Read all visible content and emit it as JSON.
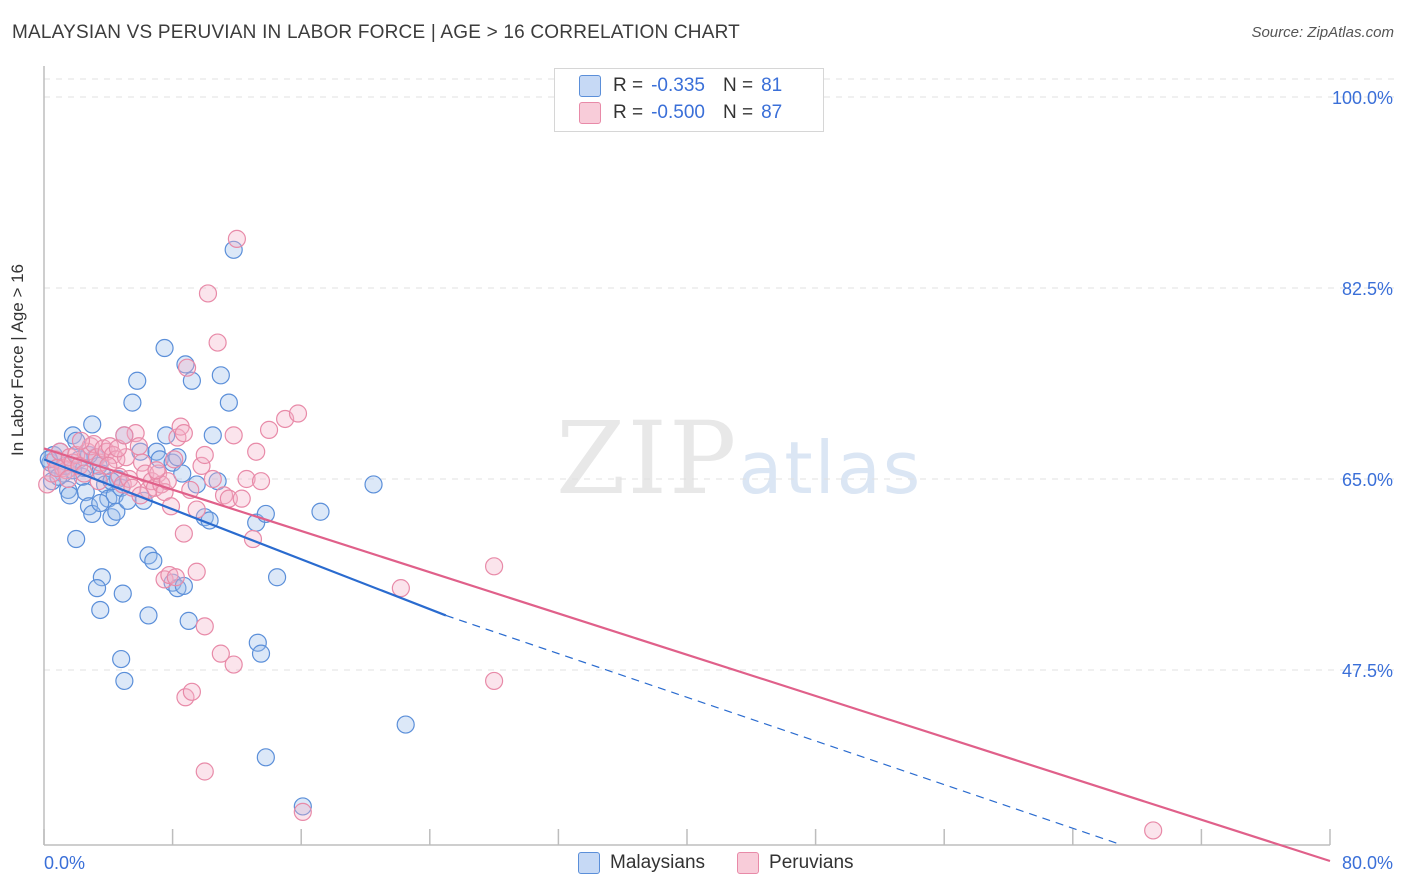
{
  "title": "MALAYSIAN VS PERUVIAN IN LABOR FORCE | AGE > 16 CORRELATION CHART",
  "source": "Source: ZipAtlas.com",
  "watermark": {
    "zip": "ZIP",
    "atlas": "atlas"
  },
  "legend": {
    "rows": [
      {
        "r_label": "R =",
        "r_value": "-0.335",
        "n_label": "N =",
        "n_value": "81"
      },
      {
        "r_label": "R =",
        "r_value": "-0.500",
        "n_label": "N =",
        "n_value": "87"
      }
    ]
  },
  "bottom_legend": {
    "malaysians": "Malaysians",
    "peruvians": "Peruvians"
  },
  "colors": {
    "blue": "#5b8fd9",
    "blue_line": "#2a6bcf",
    "pink": "#e88aa8",
    "pink_line": "#e0608a",
    "tick_text": "#3a6fd8"
  },
  "chart_data": {
    "type": "scatter",
    "title": "MALAYSIAN VS PERUVIAN IN LABOR FORCE | AGE > 16 CORRELATION CHART",
    "xlabel": "",
    "ylabel": "In Labor Force | Age > 16",
    "xlim": [
      0,
      80
    ],
    "ylim": [
      32.5,
      103
    ],
    "x_tick_labels": [
      "0.0%",
      "80.0%"
    ],
    "y_ticks": [
      47.5,
      65.0,
      82.5,
      100.0
    ],
    "y_tick_labels": [
      "47.5%",
      "65.0%",
      "82.5%",
      "100.0%"
    ],
    "series": [
      {
        "name": "Malaysians",
        "points": [
          [
            0.4,
            66.5
          ],
          [
            0.6,
            67.2
          ],
          [
            0.8,
            66.0
          ],
          [
            1.0,
            67.5
          ],
          [
            1.2,
            65.5
          ],
          [
            0.5,
            64.8
          ],
          [
            1.5,
            64.0
          ],
          [
            1.6,
            63.5
          ],
          [
            1.8,
            69.0
          ],
          [
            2.0,
            68.5
          ],
          [
            2.2,
            66.8
          ],
          [
            2.4,
            65.2
          ],
          [
            2.6,
            63.8
          ],
          [
            2.8,
            62.5
          ],
          [
            3.0,
            61.8
          ],
          [
            3.2,
            67.0
          ],
          [
            3.4,
            66.2
          ],
          [
            3.0,
            70.0
          ],
          [
            3.6,
            65.5
          ],
          [
            3.8,
            64.5
          ],
          [
            4.0,
            63.2
          ],
          [
            4.2,
            61.5
          ],
          [
            4.4,
            63.5
          ],
          [
            4.6,
            65.0
          ],
          [
            4.8,
            64.2
          ],
          [
            4.5,
            62.0
          ],
          [
            5.0,
            69.0
          ],
          [
            5.2,
            63.0
          ],
          [
            5.5,
            72.0
          ],
          [
            5.8,
            74.0
          ],
          [
            6.0,
            67.5
          ],
          [
            6.2,
            63.0
          ],
          [
            6.5,
            58.0
          ],
          [
            6.8,
            57.5
          ],
          [
            7.0,
            67.5
          ],
          [
            7.2,
            66.8
          ],
          [
            7.5,
            77.0
          ],
          [
            7.6,
            69.0
          ],
          [
            8.0,
            66.5
          ],
          [
            8.3,
            67.0
          ],
          [
            8.6,
            65.5
          ],
          [
            8.8,
            75.5
          ],
          [
            9.2,
            74.0
          ],
          [
            9.5,
            64.5
          ],
          [
            10.0,
            61.5
          ],
          [
            10.3,
            61.2
          ],
          [
            10.5,
            69.0
          ],
          [
            10.8,
            64.8
          ],
          [
            11.0,
            74.5
          ],
          [
            11.5,
            72.0
          ],
          [
            11.8,
            86.0
          ],
          [
            13.2,
            61.0
          ],
          [
            13.8,
            61.8
          ],
          [
            14.5,
            56.0
          ],
          [
            17.2,
            62.0
          ],
          [
            20.5,
            64.5
          ],
          [
            2.0,
            59.5
          ],
          [
            3.6,
            56.0
          ],
          [
            3.3,
            55.0
          ],
          [
            3.5,
            53.0
          ],
          [
            4.9,
            54.5
          ],
          [
            6.5,
            52.5
          ],
          [
            8.0,
            55.5
          ],
          [
            8.3,
            55.0
          ],
          [
            8.7,
            55.2
          ],
          [
            9.0,
            52.0
          ],
          [
            4.8,
            48.5
          ],
          [
            5.0,
            46.5
          ],
          [
            13.3,
            50.0
          ],
          [
            13.5,
            49.0
          ],
          [
            13.8,
            39.5
          ],
          [
            16.1,
            35.0
          ],
          [
            22.5,
            42.5
          ],
          [
            1.8,
            65.8
          ],
          [
            2.5,
            66.0
          ],
          [
            0.3,
            66.8
          ],
          [
            0.9,
            65.2
          ],
          [
            1.3,
            66.2
          ],
          [
            2.8,
            67.2
          ],
          [
            3.5,
            62.8
          ],
          [
            4.2,
            64.8
          ]
        ]
      },
      {
        "name": "Peruvians",
        "points": [
          [
            0.2,
            64.5
          ],
          [
            0.5,
            65.5
          ],
          [
            0.7,
            66.8
          ],
          [
            1.0,
            67.5
          ],
          [
            1.2,
            66.0
          ],
          [
            1.4,
            65.8
          ],
          [
            1.6,
            67.0
          ],
          [
            1.8,
            66.5
          ],
          [
            2.0,
            67.2
          ],
          [
            2.2,
            66.2
          ],
          [
            2.5,
            65.5
          ],
          [
            2.7,
            67.5
          ],
          [
            2.9,
            68.0
          ],
          [
            3.1,
            68.2
          ],
          [
            3.3,
            67.0
          ],
          [
            3.5,
            66.5
          ],
          [
            3.7,
            67.8
          ],
          [
            3.9,
            67.5
          ],
          [
            4.1,
            68.0
          ],
          [
            4.3,
            67.2
          ],
          [
            4.5,
            66.8
          ],
          [
            4.7,
            65.2
          ],
          [
            4.9,
            64.5
          ],
          [
            5.1,
            67.0
          ],
          [
            5.3,
            65.0
          ],
          [
            5.5,
            64.2
          ],
          [
            5.7,
            69.2
          ],
          [
            5.9,
            68.0
          ],
          [
            6.1,
            66.5
          ],
          [
            6.3,
            65.5
          ],
          [
            6.5,
            64.0
          ],
          [
            6.7,
            64.8
          ],
          [
            6.9,
            64.2
          ],
          [
            7.1,
            65.5
          ],
          [
            7.3,
            64.5
          ],
          [
            7.5,
            63.8
          ],
          [
            7.7,
            64.8
          ],
          [
            7.9,
            62.5
          ],
          [
            8.1,
            66.8
          ],
          [
            8.3,
            68.8
          ],
          [
            8.5,
            69.8
          ],
          [
            8.7,
            69.2
          ],
          [
            8.9,
            75.2
          ],
          [
            9.1,
            64.0
          ],
          [
            9.5,
            62.2
          ],
          [
            9.8,
            66.2
          ],
          [
            10.0,
            67.2
          ],
          [
            10.2,
            82.0
          ],
          [
            10.5,
            65.0
          ],
          [
            10.8,
            77.5
          ],
          [
            11.2,
            63.5
          ],
          [
            11.5,
            63.2
          ],
          [
            11.8,
            69.0
          ],
          [
            12.0,
            87.0
          ],
          [
            12.3,
            63.2
          ],
          [
            12.6,
            65.0
          ],
          [
            13.0,
            59.5
          ],
          [
            13.2,
            67.5
          ],
          [
            13.5,
            64.8
          ],
          [
            14.0,
            69.5
          ],
          [
            15.0,
            70.5
          ],
          [
            15.8,
            71.0
          ],
          [
            7.5,
            55.8
          ],
          [
            7.8,
            56.2
          ],
          [
            8.2,
            56.0
          ],
          [
            8.7,
            60.0
          ],
          [
            9.5,
            56.5
          ],
          [
            10.0,
            51.5
          ],
          [
            11.0,
            49.0
          ],
          [
            11.8,
            48.0
          ],
          [
            8.8,
            45.0
          ],
          [
            9.2,
            45.5
          ],
          [
            10.0,
            38.2
          ],
          [
            16.1,
            34.5
          ],
          [
            22.2,
            55.0
          ],
          [
            28.0,
            57.0
          ],
          [
            28.0,
            46.5
          ],
          [
            69.0,
            32.8
          ],
          [
            0.8,
            66.0
          ],
          [
            1.5,
            65.0
          ],
          [
            2.3,
            68.5
          ],
          [
            3.4,
            64.8
          ],
          [
            4.0,
            66.2
          ],
          [
            4.6,
            67.8
          ],
          [
            5.0,
            69.0
          ],
          [
            6.0,
            63.5
          ],
          [
            7.0,
            65.8
          ]
        ]
      }
    ],
    "trend_lines": [
      {
        "series": "Malaysians",
        "x0": 0,
        "y0": 66.8,
        "x1": 25,
        "y1": 52.5,
        "extend_dashed_to_x": 67,
        "extend_dashed_to_y": 31.5
      },
      {
        "series": "Peruvians",
        "x0": 0,
        "y0": 67.8,
        "x1": 80,
        "y1": 30.0
      }
    ]
  }
}
